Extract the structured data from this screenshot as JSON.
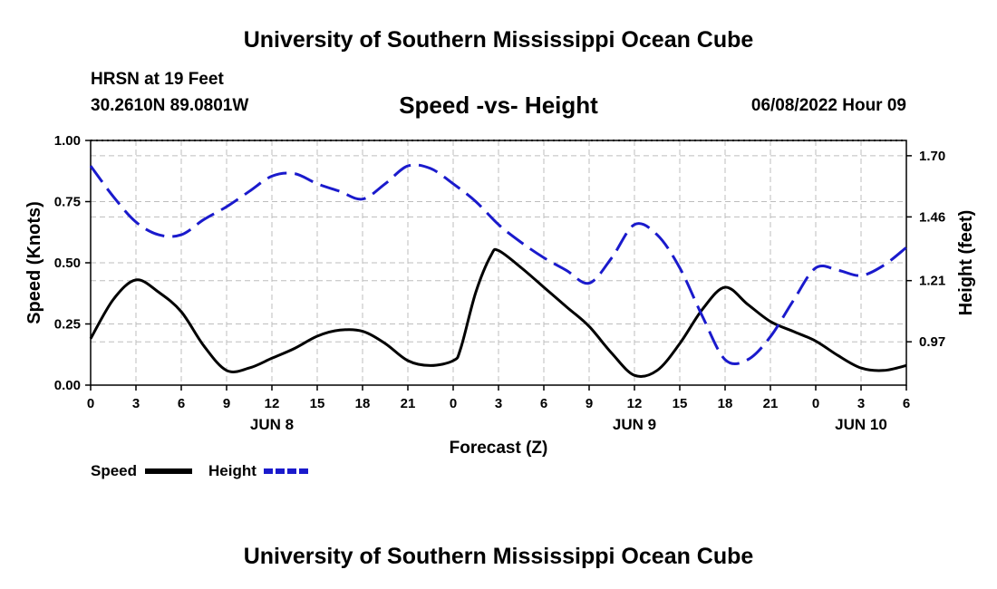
{
  "header": {
    "title": "University of Southern Mississippi Ocean Cube",
    "station": "HRSN at 19 Feet",
    "coords": "30.2610N  89.0801W",
    "subtitle": "Speed -vs- Height",
    "timestamp": "06/08/2022 Hour 09"
  },
  "footer": {
    "title": "University of Southern Mississippi Ocean Cube"
  },
  "chart_data": {
    "type": "line",
    "title": "Speed -vs- Height",
    "xlabel": "Forecast (Z)",
    "ylabel": "Speed (Knots)",
    "y2label": "Height (feet)",
    "x_range_hours": [
      0,
      54
    ],
    "x_ticks": [
      {
        "hour": 0,
        "label": "0"
      },
      {
        "hour": 3,
        "label": "3"
      },
      {
        "hour": 6,
        "label": "6"
      },
      {
        "hour": 9,
        "label": "9"
      },
      {
        "hour": 12,
        "label": "12"
      },
      {
        "hour": 15,
        "label": "15"
      },
      {
        "hour": 18,
        "label": "18"
      },
      {
        "hour": 21,
        "label": "21"
      },
      {
        "hour": 24,
        "label": "0"
      },
      {
        "hour": 27,
        "label": "3"
      },
      {
        "hour": 30,
        "label": "6"
      },
      {
        "hour": 33,
        "label": "9"
      },
      {
        "hour": 36,
        "label": "12"
      },
      {
        "hour": 39,
        "label": "15"
      },
      {
        "hour": 42,
        "label": "18"
      },
      {
        "hour": 45,
        "label": "21"
      },
      {
        "hour": 48,
        "label": "0"
      },
      {
        "hour": 51,
        "label": "3"
      },
      {
        "hour": 54,
        "label": "6"
      }
    ],
    "date_labels": [
      {
        "hour": 12,
        "label": "JUN 8"
      },
      {
        "hour": 36,
        "label": "JUN 9"
      },
      {
        "hour": 51,
        "label": "JUN 10"
      }
    ],
    "ylim": [
      0,
      1
    ],
    "y_ticks": [
      0,
      0.25,
      0.5,
      0.75,
      1
    ],
    "y_tick_labels": [
      "0.00",
      "0.25",
      "0.50",
      "0.75",
      "1.00"
    ],
    "y2lim": [
      0.8,
      1.76
    ],
    "y2_ticks": [
      0.97,
      1.21,
      1.46,
      1.7
    ],
    "y2_tick_labels": [
      "0.97",
      "1.21",
      "1.46",
      "1.70"
    ],
    "grid": true,
    "legend_position": "bottom-left",
    "series": [
      {
        "name": "Speed",
        "axis": "left",
        "color": "#000000",
        "style": "solid",
        "points": [
          [
            0,
            0.19
          ],
          [
            1.5,
            0.35
          ],
          [
            3,
            0.43
          ],
          [
            4.5,
            0.38
          ],
          [
            6,
            0.3
          ],
          [
            7.5,
            0.16
          ],
          [
            9,
            0.06
          ],
          [
            10.5,
            0.07
          ],
          [
            12,
            0.11
          ],
          [
            13.5,
            0.15
          ],
          [
            15,
            0.2
          ],
          [
            16.5,
            0.225
          ],
          [
            18,
            0.22
          ],
          [
            19.5,
            0.17
          ],
          [
            21,
            0.1
          ],
          [
            22.5,
            0.08
          ],
          [
            24,
            0.1
          ],
          [
            24.5,
            0.15
          ],
          [
            25.5,
            0.38
          ],
          [
            26.5,
            0.53
          ],
          [
            27,
            0.55
          ],
          [
            28.5,
            0.48
          ],
          [
            30,
            0.4
          ],
          [
            31.5,
            0.32
          ],
          [
            33,
            0.24
          ],
          [
            34.5,
            0.13
          ],
          [
            36,
            0.04
          ],
          [
            37.5,
            0.06
          ],
          [
            39,
            0.17
          ],
          [
            40.5,
            0.31
          ],
          [
            42,
            0.4
          ],
          [
            43.5,
            0.33
          ],
          [
            45,
            0.26
          ],
          [
            46.5,
            0.22
          ],
          [
            48,
            0.18
          ],
          [
            49.5,
            0.12
          ],
          [
            51,
            0.07
          ],
          [
            52.5,
            0.06
          ],
          [
            54,
            0.08
          ]
        ]
      },
      {
        "name": "Height",
        "axis": "right",
        "color": "#1a1acc",
        "style": "dashed",
        "points": [
          [
            0,
            1.66
          ],
          [
            1.5,
            1.54
          ],
          [
            3,
            1.44
          ],
          [
            4.5,
            1.39
          ],
          [
            6,
            1.39
          ],
          [
            7.5,
            1.45
          ],
          [
            9,
            1.5
          ],
          [
            10.5,
            1.56
          ],
          [
            12,
            1.62
          ],
          [
            13.5,
            1.63
          ],
          [
            15,
            1.59
          ],
          [
            16.5,
            1.56
          ],
          [
            18,
            1.53
          ],
          [
            19.5,
            1.59
          ],
          [
            21,
            1.66
          ],
          [
            22.5,
            1.65
          ],
          [
            24,
            1.59
          ],
          [
            25.5,
            1.52
          ],
          [
            27,
            1.43
          ],
          [
            28.5,
            1.36
          ],
          [
            30,
            1.3
          ],
          [
            31.5,
            1.25
          ],
          [
            33,
            1.2
          ],
          [
            34.5,
            1.3
          ],
          [
            36,
            1.43
          ],
          [
            37.5,
            1.39
          ],
          [
            39,
            1.26
          ],
          [
            40.5,
            1.07
          ],
          [
            42,
            0.9
          ],
          [
            43.5,
            0.9
          ],
          [
            45,
            0.99
          ],
          [
            46.5,
            1.13
          ],
          [
            48,
            1.26
          ],
          [
            49.5,
            1.25
          ],
          [
            51,
            1.23
          ],
          [
            52.5,
            1.27
          ],
          [
            54,
            1.34
          ]
        ]
      }
    ]
  }
}
